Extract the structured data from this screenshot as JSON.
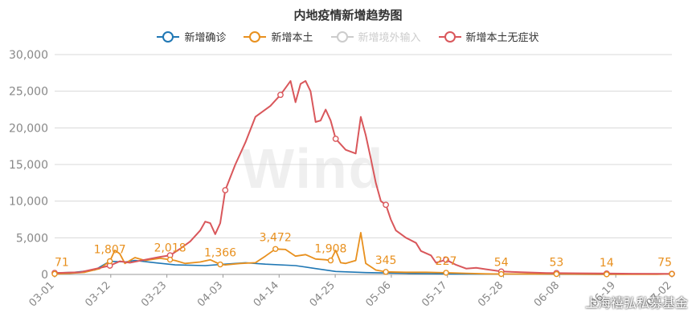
{
  "chart_data": {
    "type": "line",
    "title": "内地疫情新增趋势图",
    "x_ticks": [
      "03-01",
      "03-12",
      "03-23",
      "04-03",
      "04-14",
      "04-25",
      "05-06",
      "05-17",
      "05-28",
      "06-08",
      "06-19",
      "07-02"
    ],
    "ylim": [
      0,
      30000
    ],
    "y_ticks": [
      "0",
      "5,000",
      "10,000",
      "15,000",
      "20,000",
      "25,000",
      "30,000"
    ],
    "grid": true,
    "legend_position": "top-center",
    "series": [
      {
        "name": "新增确诊",
        "color": "#1f77b4",
        "visible": true,
        "points": [
          [
            0,
            200
          ],
          [
            4,
            300
          ],
          [
            8,
            600
          ],
          [
            10,
            1400
          ],
          [
            11,
            1800
          ],
          [
            14,
            1700
          ],
          [
            16,
            1900
          ],
          [
            20,
            1600
          ],
          [
            24,
            1300
          ],
          [
            30,
            1200
          ],
          [
            34,
            1400
          ],
          [
            38,
            1600
          ],
          [
            42,
            1400
          ],
          [
            48,
            1200
          ],
          [
            52,
            800
          ],
          [
            56,
            400
          ],
          [
            62,
            250
          ],
          [
            70,
            150
          ],
          [
            80,
            60
          ],
          [
            89,
            40
          ],
          [
            100,
            20
          ],
          [
            110,
            10
          ],
          [
            123,
            60
          ]
        ]
      },
      {
        "name": "新增本土",
        "color": "#e8901e",
        "visible": true,
        "points": [
          [
            0,
            71
          ],
          [
            3,
            150
          ],
          [
            6,
            300
          ],
          [
            9,
            800
          ],
          [
            11,
            1807
          ],
          [
            12,
            3300
          ],
          [
            13,
            2800
          ],
          [
            14,
            1500
          ],
          [
            16,
            2300
          ],
          [
            18,
            1900
          ],
          [
            21,
            2200
          ],
          [
            23,
            2018
          ],
          [
            24,
            1900
          ],
          [
            26,
            1500
          ],
          [
            29,
            1700
          ],
          [
            31,
            2000
          ],
          [
            33,
            1366
          ],
          [
            34,
            1300
          ],
          [
            37,
            1500
          ],
          [
            40,
            1600
          ],
          [
            42,
            2500
          ],
          [
            44,
            3472
          ],
          [
            46,
            3400
          ],
          [
            48,
            2500
          ],
          [
            50,
            2700
          ],
          [
            52,
            2100
          ],
          [
            54,
            2000
          ],
          [
            55,
            1908
          ],
          [
            56,
            3300
          ],
          [
            57,
            1600
          ],
          [
            58,
            1500
          ],
          [
            60,
            1900
          ],
          [
            61,
            5700
          ],
          [
            62,
            1500
          ],
          [
            64,
            600
          ],
          [
            66,
            345
          ],
          [
            70,
            300
          ],
          [
            74,
            300
          ],
          [
            78,
            227
          ],
          [
            82,
            150
          ],
          [
            86,
            80
          ],
          [
            89,
            54
          ],
          [
            93,
            60
          ],
          [
            100,
            53
          ],
          [
            110,
            14
          ],
          [
            120,
            20
          ],
          [
            123,
            75
          ]
        ]
      },
      {
        "name": "新增境外输入",
        "color": "#cccccc",
        "visible": false,
        "points": []
      },
      {
        "name": "新增本土无症状",
        "color": "#d9575b",
        "visible": true,
        "points": [
          [
            0,
            200
          ],
          [
            5,
            300
          ],
          [
            9,
            900
          ],
          [
            11,
            1200
          ],
          [
            13,
            1800
          ],
          [
            15,
            1600
          ],
          [
            18,
            2000
          ],
          [
            21,
            2400
          ],
          [
            23,
            2600
          ],
          [
            25,
            3500
          ],
          [
            27,
            4500
          ],
          [
            29,
            6000
          ],
          [
            30,
            7200
          ],
          [
            31,
            7000
          ],
          [
            32,
            5500
          ],
          [
            33,
            7000
          ],
          [
            34,
            11500
          ],
          [
            36,
            15000
          ],
          [
            38,
            18000
          ],
          [
            40,
            21500
          ],
          [
            43,
            23000
          ],
          [
            45,
            24500
          ],
          [
            47,
            26400
          ],
          [
            48,
            23500
          ],
          [
            49,
            26000
          ],
          [
            50,
            26400
          ],
          [
            51,
            25000
          ],
          [
            52,
            20800
          ],
          [
            53,
            21000
          ],
          [
            54,
            22500
          ],
          [
            55,
            21000
          ],
          [
            56,
            18500
          ],
          [
            58,
            17000
          ],
          [
            60,
            16500
          ],
          [
            61,
            21500
          ],
          [
            62,
            19000
          ],
          [
            63,
            15800
          ],
          [
            64,
            12500
          ],
          [
            65,
            10000
          ],
          [
            66,
            9500
          ],
          [
            67,
            7500
          ],
          [
            68,
            6000
          ],
          [
            70,
            5000
          ],
          [
            72,
            4300
          ],
          [
            73,
            3200
          ],
          [
            75,
            2600
          ],
          [
            76,
            1600
          ],
          [
            78,
            2000
          ],
          [
            80,
            1300
          ],
          [
            82,
            800
          ],
          [
            84,
            900
          ],
          [
            86,
            700
          ],
          [
            89,
            400
          ],
          [
            93,
            300
          ],
          [
            98,
            200
          ],
          [
            105,
            150
          ],
          [
            115,
            100
          ],
          [
            123,
            80
          ]
        ]
      }
    ],
    "data_labels": [
      {
        "series": "新增本土",
        "x": 0,
        "y": 71,
        "text": "71"
      },
      {
        "series": "新增本土",
        "x": 11,
        "y": 1807,
        "text": "1,807"
      },
      {
        "series": "新增本土",
        "x": 23,
        "y": 2018,
        "text": "2,018"
      },
      {
        "series": "新增本土",
        "x": 33,
        "y": 1366,
        "text": "1,366"
      },
      {
        "series": "新增本土",
        "x": 44,
        "y": 3472,
        "text": "3,472"
      },
      {
        "series": "新增本土",
        "x": 55,
        "y": 1908,
        "text": "1,908"
      },
      {
        "series": "新增本土",
        "x": 66,
        "y": 345,
        "text": "345"
      },
      {
        "series": "新增本土",
        "x": 78,
        "y": 227,
        "text": "227"
      },
      {
        "series": "新增本土",
        "x": 89,
        "y": 54,
        "text": "54"
      },
      {
        "series": "新增本土",
        "x": 100,
        "y": 53,
        "text": "53"
      },
      {
        "series": "新增本土",
        "x": 110,
        "y": 14,
        "text": "14"
      },
      {
        "series": "新增本土",
        "x": 123,
        "y": 75,
        "text": "75"
      }
    ],
    "red_markers_x": [
      0,
      11,
      23,
      34,
      45,
      56,
      66,
      78,
      89,
      100,
      110,
      123
    ],
    "x_count": 124
  },
  "watermark": "Wind",
  "source_credit": "上海禧弘私募基金",
  "wechat_icon": "wechat-icon"
}
